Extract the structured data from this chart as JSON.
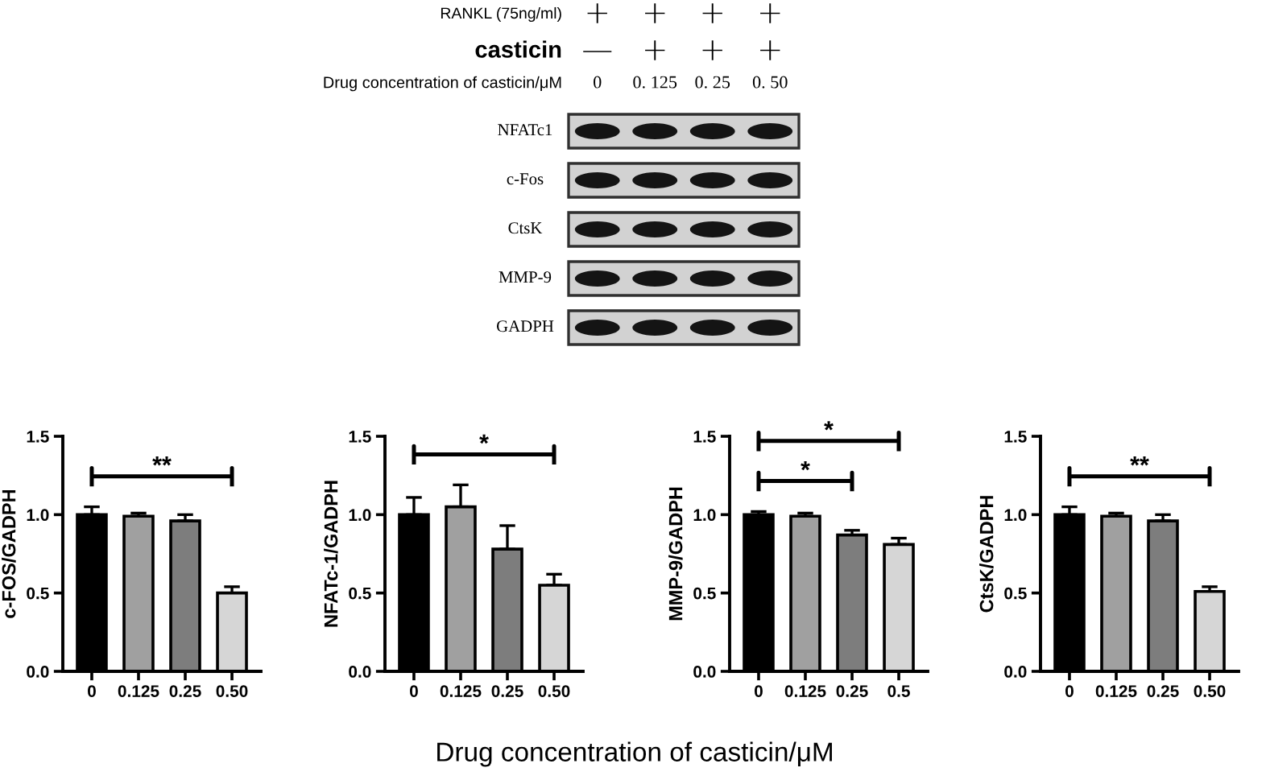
{
  "chart_data": [
    {
      "type": "other",
      "annotations": [
        "RANKL (75ng/ml)",
        "casticin"
      ],
      "cell_labels": [
        [
          "+",
          "+",
          "+",
          "+"
        ],
        [
          "—",
          "+",
          "+",
          "+"
        ]
      ],
      "xlabel": "Drug concentration of casticin/μM",
      "categories": [
        "0",
        "0. 125",
        "0. 25",
        "0. 50"
      ],
      "y_categories": [
        "NFATc1",
        "c-Fos",
        "CtsK",
        "MMP-9",
        "GADPH"
      ]
    },
    {
      "type": "bar",
      "ylabel": "c-FOS/GADPH",
      "categories": [
        "0",
        "0.125",
        "0.25",
        "0.50"
      ],
      "values": [
        1.0,
        0.99,
        0.96,
        0.5
      ],
      "errors": [
        [
          1.0,
          1.05
        ],
        [
          0.99,
          1.01
        ],
        [
          0.96,
          1.0
        ],
        [
          0.5,
          0.54
        ]
      ],
      "colors": [
        "#000000",
        "#a0a0a0",
        "#7d7d7d",
        "#d6d6d6"
      ],
      "ylim": [
        0,
        1.5
      ],
      "yticks": [
        {
          "value": 0,
          "label": "0.0"
        },
        {
          "value": 0.5,
          "label": "0.5"
        },
        {
          "value": 1,
          "label": "1.0"
        },
        {
          "value": 1.5,
          "label": "1.5"
        }
      ],
      "annotations": [
        "**"
      ]
    },
    {
      "type": "bar",
      "ylabel": "NFATc-1/GADPH",
      "categories": [
        "0",
        "0.125",
        "0.25",
        "0.50"
      ],
      "values": [
        1.0,
        1.05,
        0.78,
        0.55
      ],
      "errors": [
        [
          1.0,
          1.11
        ],
        [
          1.05,
          1.19
        ],
        [
          0.78,
          0.93
        ],
        [
          0.55,
          0.62
        ]
      ],
      "colors": [
        "#000000",
        "#a0a0a0",
        "#7d7d7d",
        "#d6d6d6"
      ],
      "ylim": [
        0,
        1.5
      ],
      "yticks": [
        {
          "value": 0,
          "label": "0.0"
        },
        {
          "value": 0.5,
          "label": "0.5"
        },
        {
          "value": 1,
          "label": "1.0"
        },
        {
          "value": 1.5,
          "label": "1.5"
        }
      ],
      "annotations": [
        "*"
      ]
    },
    {
      "type": "bar",
      "ylabel": "MMP-9/GADPH",
      "categories": [
        "0",
        "0.125",
        "0.25",
        "0.5"
      ],
      "values": [
        1.0,
        0.99,
        0.87,
        0.81
      ],
      "errors": [
        [
          1.0,
          1.02
        ],
        [
          0.99,
          1.01
        ],
        [
          0.87,
          0.9
        ],
        [
          0.81,
          0.85
        ]
      ],
      "colors": [
        "#000000",
        "#a0a0a0",
        "#7d7d7d",
        "#d6d6d6"
      ],
      "ylim": [
        0,
        1.5
      ],
      "yticks": [
        {
          "value": 0,
          "label": "0.0"
        },
        {
          "value": 0.5,
          "label": "0.5"
        },
        {
          "value": 1,
          "label": "1.0"
        },
        {
          "value": 1.5,
          "label": "1.5"
        }
      ],
      "annotations": [
        "*",
        "*"
      ]
    },
    {
      "type": "bar",
      "ylabel": "CtsK/GADPH",
      "categories": [
        "0",
        "0.125",
        "0.25",
        "0.50"
      ],
      "values": [
        1.0,
        0.99,
        0.96,
        0.51
      ],
      "errors": [
        [
          1.0,
          1.05
        ],
        [
          0.99,
          1.01
        ],
        [
          0.96,
          1.0
        ],
        [
          0.51,
          0.54
        ]
      ],
      "colors": [
        "#000000",
        "#a0a0a0",
        "#7d7d7d",
        "#d6d6d6"
      ],
      "ylim": [
        0,
        1.5
      ],
      "yticks": [
        {
          "value": 0,
          "label": "0.0"
        },
        {
          "value": 0.5,
          "label": "0.5"
        },
        {
          "value": 1,
          "label": "1.0"
        },
        {
          "value": 1.5,
          "label": "1.5"
        }
      ],
      "annotations": [
        "**"
      ]
    },
    {
      "type": "other",
      "annotations": [
        "Drug concentration of casticin/μM"
      ]
    }
  ]
}
